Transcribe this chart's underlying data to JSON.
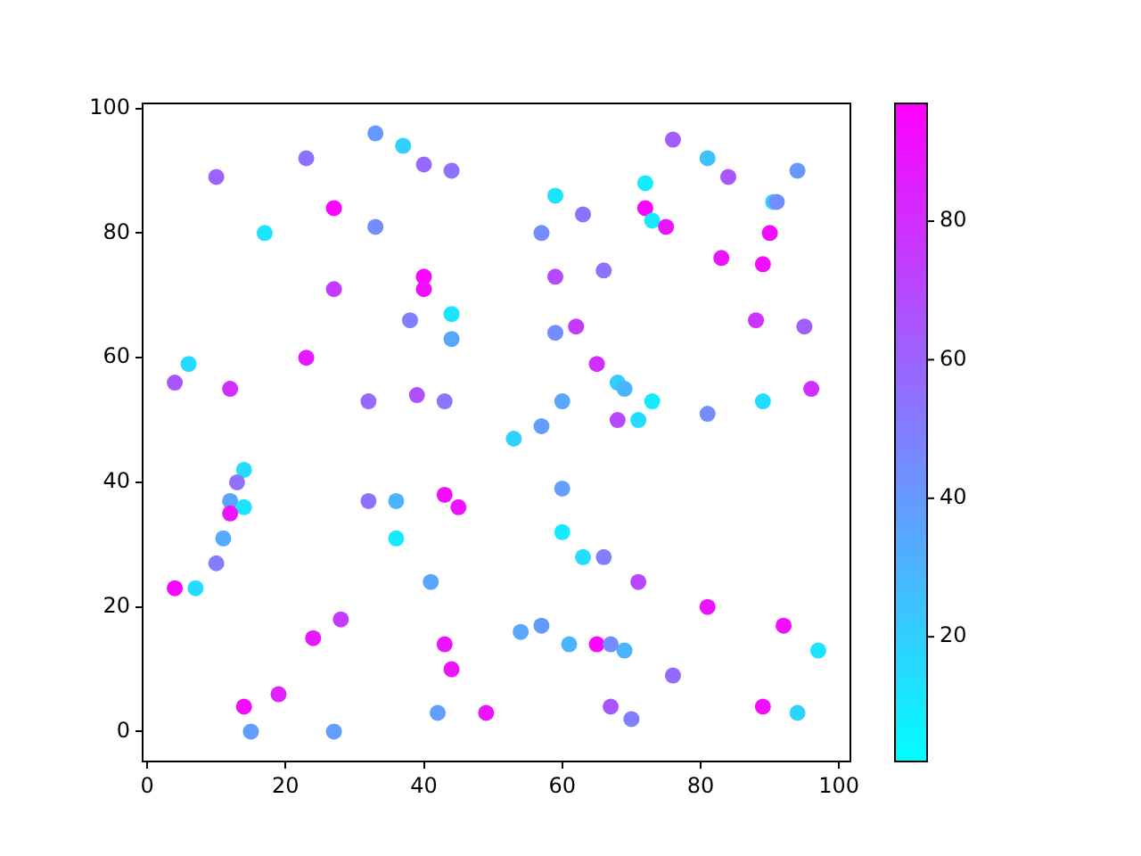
{
  "chart_data": {
    "type": "scatter",
    "marker": "circle",
    "grid": false,
    "legend": false,
    "x": [
      33,
      37,
      23,
      40,
      44,
      10,
      27,
      33,
      17,
      40,
      40,
      27,
      44,
      38,
      44,
      6,
      4,
      12,
      23,
      32,
      39,
      43,
      76,
      81,
      84,
      94,
      59,
      72,
      63,
      57,
      72,
      73,
      75,
      90.5,
      91,
      83,
      89,
      90,
      59,
      66,
      62,
      59,
      65,
      88,
      95,
      68,
      69,
      73,
      71,
      68,
      60,
      81,
      89,
      96,
      57,
      53,
      14,
      13,
      12,
      14,
      12,
      11,
      10,
      4,
      7,
      32,
      36,
      36,
      43,
      45,
      41,
      28,
      24,
      43,
      44,
      14,
      19,
      15,
      27,
      49,
      42,
      60,
      60,
      63,
      66,
      71,
      81,
      92,
      97,
      54,
      57,
      61,
      65,
      67,
      69,
      76,
      67,
      70,
      89,
      94
    ],
    "values": [
      96,
      94,
      92,
      91,
      90,
      89,
      84,
      81,
      80,
      73,
      71,
      71,
      67,
      66,
      63,
      59,
      56,
      55,
      60,
      53,
      54,
      53,
      95,
      92,
      89,
      90,
      86,
      88,
      83,
      80,
      84,
      82,
      81,
      85,
      85,
      76,
      75,
      80,
      73,
      74,
      65,
      64,
      59,
      66,
      65,
      56,
      55,
      53,
      50,
      50,
      53,
      51,
      53,
      55,
      49,
      47,
      42,
      40,
      37,
      36,
      35,
      31,
      27,
      23,
      23,
      37,
      37,
      31,
      38,
      36,
      24,
      18,
      15,
      14,
      10,
      4,
      6,
      0,
      0,
      3,
      3,
      39,
      32,
      28,
      28,
      24,
      20,
      17,
      13,
      16,
      17,
      14,
      14,
      14,
      13,
      9,
      4,
      2,
      4,
      3
    ],
    "cvalues": [
      40,
      20,
      55,
      58,
      55,
      60,
      95,
      45,
      12,
      95,
      92,
      75,
      12,
      50,
      35,
      15,
      65,
      80,
      88,
      58,
      68,
      52,
      62,
      25,
      65,
      40,
      12,
      10,
      55,
      45,
      95,
      10,
      90,
      20,
      45,
      90,
      92,
      92,
      70,
      55,
      75,
      45,
      80,
      78,
      62,
      20,
      30,
      10,
      15,
      70,
      35,
      45,
      15,
      80,
      38,
      20,
      15,
      55,
      35,
      12,
      90,
      33,
      50,
      95,
      15,
      55,
      30,
      10,
      92,
      90,
      35,
      75,
      88,
      90,
      90,
      93,
      85,
      38,
      38,
      90,
      38,
      38,
      10,
      15,
      50,
      70,
      90,
      92,
      12,
      35,
      40,
      30,
      95,
      45,
      30,
      58,
      65,
      50,
      92,
      18
    ],
    "clim": [
      2,
      97
    ],
    "cticks": [
      20,
      40,
      60,
      80
    ],
    "xlim": [
      -0.65,
      101.65
    ],
    "xticks": [
      0,
      20,
      40,
      60,
      80,
      100
    ],
    "ylim": [
      -4.8,
      100.8
    ],
    "yticks": [
      0,
      20,
      40,
      60,
      80,
      100
    ]
  }
}
